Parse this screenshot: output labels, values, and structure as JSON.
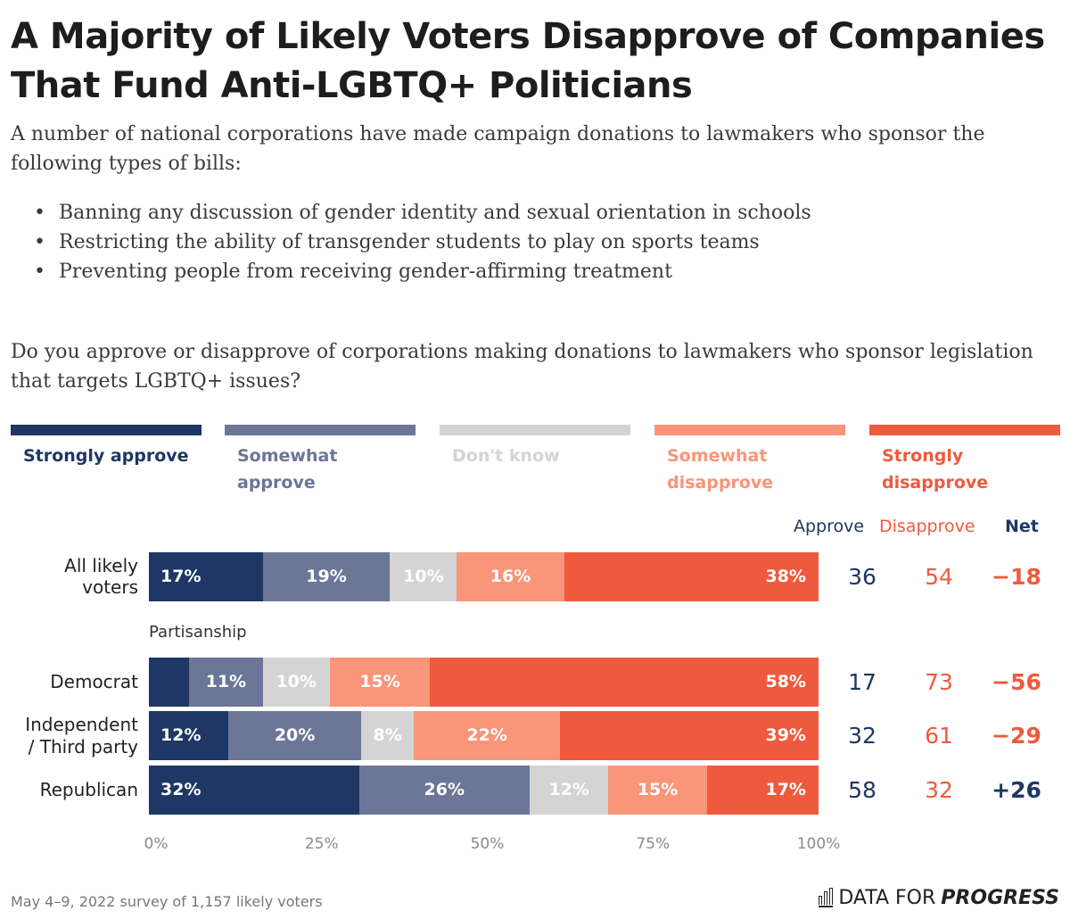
{
  "title": "A Majority of Likely Voters Disapprove of Companies That Fund Anti-LGBTQ+ Politicians",
  "intro": "A number of national corporations have made campaign donations to lawmakers who sponsor the following types of bills:",
  "bullets": [
    "Banning any discussion of gender identity and sexual orientation in schools",
    "Restricting the ability of transgender students to play on sports teams",
    "Preventing people from receiving gender-affirming treatment"
  ],
  "question": "Do you approve or disapprove of corporations making donations to lawmakers who sponsor legislation that targets LGBTQ+ issues?",
  "colors": {
    "strongly_approve": "#1e3764",
    "somewhat_approve": "#6c7697",
    "dont_know": "#d4d4d4",
    "somewhat_disapprove": "#f99579",
    "strongly_disapprove": "#ef5a3e",
    "approve_text": "#1e3764",
    "disapprove_text": "#ef5a3e"
  },
  "columns": {
    "approve": "Approve",
    "disapprove": "Disapprove",
    "net": "Net"
  },
  "section_label": "Partisanship",
  "footer": {
    "note": "May 4–9, 2022 survey of 1,157 likely voters",
    "brand_light": "DATA FOR",
    "brand_bold": "PROGRESS",
    "brand_icon": "bar-chart-icon"
  },
  "chart_data": {
    "type": "bar",
    "orientation": "horizontal-stacked",
    "series": [
      {
        "name": "Strongly approve",
        "values": [
          17,
          6,
          12,
          32
        ]
      },
      {
        "name": "Somewhat approve",
        "values": [
          19,
          11,
          20,
          26
        ]
      },
      {
        "name": "Don't know",
        "values": [
          10,
          10,
          8,
          12
        ]
      },
      {
        "name": "Somewhat disapprove",
        "values": [
          16,
          15,
          22,
          15
        ]
      },
      {
        "name": "Strongly disapprove",
        "values": [
          38,
          58,
          39,
          17
        ]
      }
    ],
    "categories": [
      "All likely voters",
      "Democrat",
      "Independent / Third party",
      "Republican"
    ],
    "show_label": [
      [
        true,
        true,
        true,
        true,
        true
      ],
      [
        false,
        true,
        true,
        true,
        true
      ],
      [
        true,
        true,
        true,
        true,
        true
      ],
      [
        true,
        true,
        true,
        true,
        true
      ]
    ],
    "approve": [
      36,
      17,
      32,
      58
    ],
    "disapprove": [
      54,
      73,
      61,
      32
    ],
    "net": [
      "−18",
      "−56",
      "−29",
      "+26"
    ],
    "x_ticks": [
      "0%",
      "25%",
      "50%",
      "75%",
      "100%"
    ],
    "xlim": [
      0,
      100
    ]
  }
}
